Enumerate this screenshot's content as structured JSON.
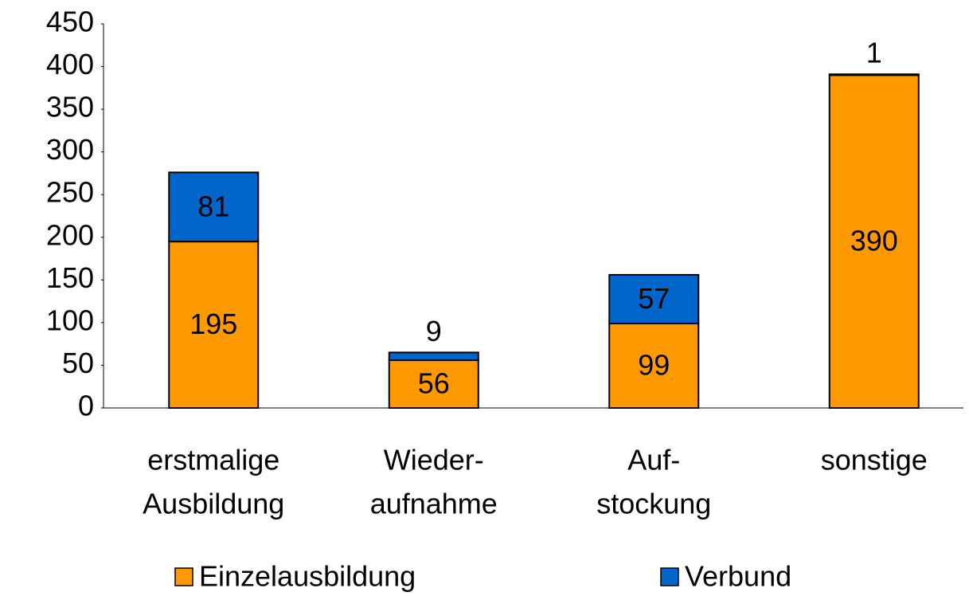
{
  "chart_data": {
    "type": "stacked_bar",
    "categories": [
      [
        "erstmalige",
        "Ausbildung"
      ],
      [
        "Wieder-",
        "aufnahme"
      ],
      [
        "Auf-",
        "stockung"
      ],
      [
        "sonstige"
      ]
    ],
    "series": [
      {
        "name": "Einzelausbildung",
        "color": "#ff9900",
        "values": [
          195,
          56,
          99,
          390
        ]
      },
      {
        "name": "Verbund",
        "color": "#0066cc",
        "values": [
          81,
          9,
          57,
          1
        ]
      }
    ],
    "ylim": [
      0,
      450
    ],
    "yticks": [
      0,
      50,
      100,
      150,
      200,
      250,
      300,
      350,
      400,
      450
    ]
  }
}
